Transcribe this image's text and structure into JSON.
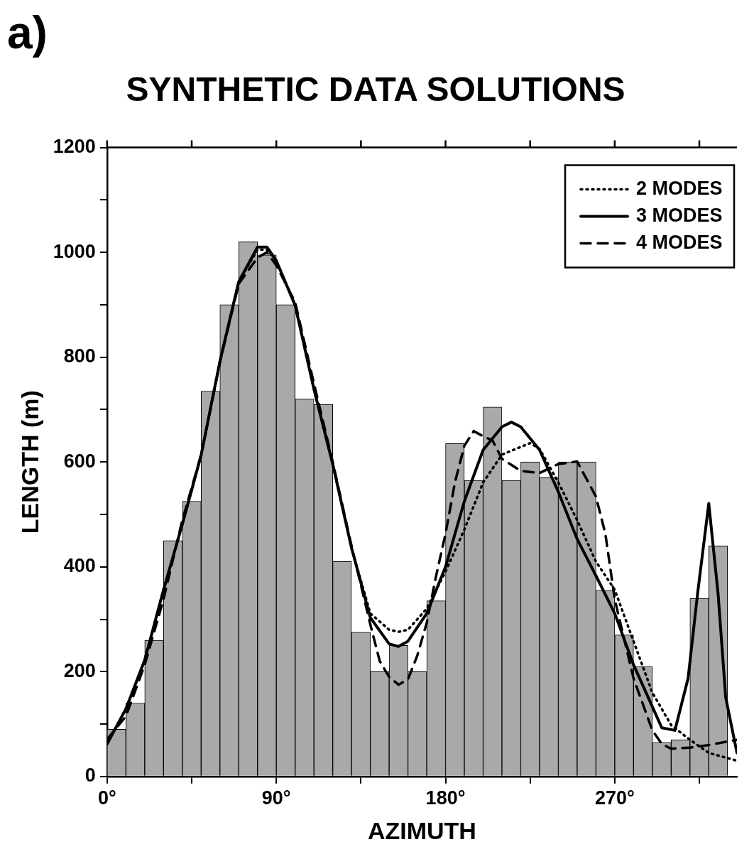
{
  "chart_data": {
    "type": "histogram",
    "title": "SYNTHETIC DATA SOLUTIONS",
    "xlabel": "AZIMUTH",
    "ylabel": "LENGTH (m)",
    "annotations": [
      "a)"
    ],
    "bins": [
      0,
      10,
      20,
      30,
      40,
      50,
      60,
      70,
      80,
      90,
      100,
      110,
      120,
      130,
      140,
      150,
      160,
      170,
      180,
      190,
      200,
      210,
      220,
      230,
      240,
      250,
      260,
      270,
      280,
      290,
      300,
      310,
      320,
      330
    ],
    "values": [
      90,
      140,
      260,
      450,
      525,
      735,
      900,
      1020,
      995,
      900,
      720,
      710,
      410,
      275,
      200,
      250,
      200,
      335,
      635,
      565,
      705,
      565,
      600,
      570,
      600,
      600,
      355,
      270,
      210,
      65,
      70,
      340,
      440
    ],
    "color": "#a9a9a9",
    "series": [
      {
        "type": "line",
        "name": "2 MODES",
        "color": "#000000",
        "line_style": "dotted",
        "x": [
          0,
          10,
          20,
          30,
          40,
          50,
          60,
          70,
          80,
          85,
          90,
          100,
          110,
          120,
          130,
          140,
          150,
          155,
          160,
          170,
          180,
          190,
          200,
          210,
          225,
          230,
          240,
          250,
          260,
          270,
          280,
          290,
          300,
          310,
          320,
          335
        ],
        "values": [
          62,
          129,
          222,
          356,
          481,
          613,
          792,
          944,
          1005,
          1005,
          984,
          899,
          739,
          596,
          436,
          311,
          280,
          276,
          280,
          320,
          391,
          471,
          561,
          614,
          636,
          625,
          561,
          489,
          410,
          356,
          258,
          160,
          98,
          70,
          45,
          30
        ]
      },
      {
        "type": "line",
        "name": "3 MODES",
        "color": "#000000",
        "line_style": "solid",
        "x": [
          0,
          10,
          20,
          30,
          40,
          50,
          60,
          70,
          80,
          85,
          90,
          100,
          110,
          120,
          130,
          140,
          150,
          155,
          160,
          170,
          180,
          190,
          200,
          210,
          215,
          220,
          230,
          240,
          250,
          260,
          270,
          280,
          290,
          295,
          302,
          309,
          314,
          320,
          325,
          329,
          335
        ],
        "values": [
          62,
          129,
          222,
          356,
          481,
          613,
          792,
          944,
          1010,
          1010,
          984,
          899,
          739,
          596,
          436,
          303,
          253,
          248,
          258,
          311,
          400,
          525,
          623,
          667,
          676,
          667,
          623,
          543,
          453,
          383,
          311,
          213,
          133,
          93,
          88,
          187,
          347,
          521,
          347,
          151,
          45
        ]
      },
      {
        "type": "line",
        "name": "4 MODES",
        "color": "#000000",
        "line_style": "dashed",
        "x": [
          0,
          10,
          20,
          30,
          40,
          50,
          60,
          70,
          80,
          85,
          90,
          100,
          110,
          120,
          130,
          140,
          145,
          150,
          155,
          160,
          165,
          170,
          175,
          180,
          185,
          190,
          195,
          200,
          205,
          210,
          220,
          230,
          240,
          250,
          260,
          265,
          270,
          280,
          290,
          295,
          300,
          310,
          320,
          335
        ],
        "values": [
          71,
          115,
          213,
          338,
          489,
          613,
          790,
          940,
          990,
          1000,
          975,
          905,
          750,
          600,
          440,
          290,
          220,
          190,
          175,
          185,
          231,
          293,
          383,
          463,
          561,
          631,
          659,
          649,
          641,
          606,
          583,
          579,
          596,
          601,
          534,
          463,
          338,
          187,
          88,
          62,
          53,
          55,
          60,
          70
        ]
      }
    ],
    "xlim": [
      0,
      335
    ],
    "xticks": [
      {
        "value": 0,
        "label": "0°"
      },
      {
        "value": 45,
        "label": null
      },
      {
        "value": 90,
        "label": "90°"
      },
      {
        "value": 135,
        "label": null
      },
      {
        "value": 180,
        "label": "180°"
      },
      {
        "value": 225,
        "label": null
      },
      {
        "value": 270,
        "label": "270°"
      },
      {
        "value": 315,
        "label": null
      }
    ],
    "ylim": [
      0,
      1200
    ],
    "yticks": [
      0,
      {
        "value": 100,
        "label": null
      },
      200,
      {
        "value": 300,
        "label": null
      },
      400,
      {
        "value": 500,
        "label": null
      },
      600,
      {
        "value": 700,
        "label": null
      },
      800,
      {
        "value": 900,
        "label": null
      },
      1000,
      {
        "value": 1100,
        "label": null
      },
      1200
    ],
    "legend": "top right"
  }
}
